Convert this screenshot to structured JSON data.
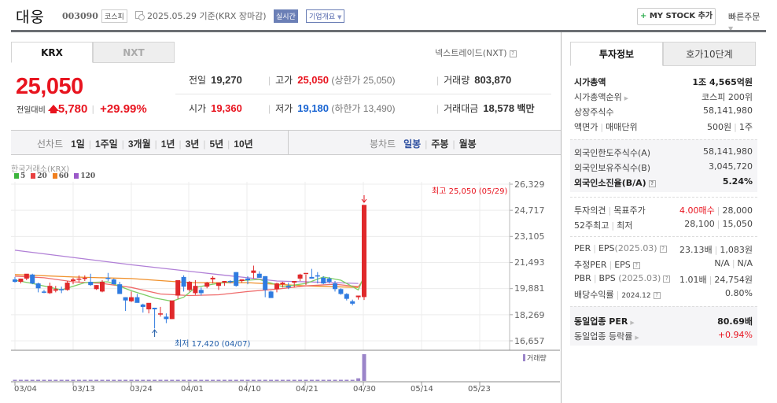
{
  "header": {
    "stock_name": "대웅",
    "stock_code": "003090",
    "market_badge": "코스피",
    "date_text": "2025.05.29 기준(KRX 장마감)",
    "realtime_badge": "실시간",
    "company_overview_label": "기업개요",
    "mystock_button": "MY STOCK 추가",
    "quick_order_label": "빠른주문"
  },
  "exchange_tabs": [
    {
      "label": "KRX",
      "active": true
    },
    {
      "label": "NXT",
      "active": false
    }
  ],
  "nxt_link": "넥스트레이드(NXT)",
  "quote": {
    "current_price": "25,050",
    "change_label": "전일대비",
    "change_amount": "5,780",
    "change_percent": "+29.99%",
    "direction": "up"
  },
  "stats": {
    "prev_close": {
      "label": "전일",
      "value": "19,270"
    },
    "high": {
      "label": "고가",
      "value": "25,050",
      "extra": "(상한가 25,050)"
    },
    "volume": {
      "label": "거래량",
      "value": "803,870"
    },
    "open": {
      "label": "시가",
      "value": "19,360"
    },
    "low": {
      "label": "저가",
      "value": "19,180",
      "extra": "(하한가 13,490)"
    },
    "trade_value": {
      "label": "거래대금",
      "value": "18,578",
      "unit": "백만"
    }
  },
  "period_bar": {
    "line_chart_label": "선차트",
    "line_periods": [
      "1일",
      "1주일",
      "3개월",
      "1년",
      "3년",
      "5년",
      "10년"
    ],
    "candle_chart_label": "봉차트",
    "candle_periods": [
      {
        "label": "일봉",
        "active": true
      },
      {
        "label": "주봉",
        "active": false
      },
      {
        "label": "월봉",
        "active": false
      }
    ]
  },
  "chart": {
    "source_label": "한국거래소(KRX)",
    "ma_legend": [
      {
        "label": "5",
        "color": "#3cb43c"
      },
      {
        "label": "20",
        "color": "#e84040"
      },
      {
        "label": "60",
        "color": "#f08020"
      },
      {
        "label": "120",
        "color": "#9b59c9"
      }
    ],
    "y_ticks": [
      "26,329",
      "24,717",
      "23,105",
      "21,493",
      "19,881",
      "18,269",
      "16,657"
    ],
    "x_ticks": [
      "03/04",
      "03/13",
      "03/24",
      "04/01",
      "04/10",
      "04/21",
      "04/30",
      "05/14",
      "05/23"
    ],
    "high_annotation": "최고 25,050 (05/29)",
    "low_annotation": "최저 17,420 (04/07)",
    "volume_legend": "거래량",
    "up_color": "#e0292b",
    "down_color": "#2f7be0"
  },
  "chart_data": {
    "type": "candlestick",
    "title": "대웅 일봉",
    "ylim": [
      16657,
      26329
    ],
    "candles": [
      [
        20450,
        20600,
        20250,
        20300
      ],
      [
        20300,
        20500,
        20200,
        20500
      ],
      [
        20500,
        20700,
        20400,
        20800
      ],
      [
        20750,
        20800,
        20150,
        20200
      ],
      [
        20200,
        20250,
        19650,
        19900
      ],
      [
        19700,
        19800,
        19600,
        19650
      ],
      [
        19600,
        20250,
        19550,
        20050
      ],
      [
        19750,
        20050,
        19650,
        19850
      ],
      [
        19850,
        20000,
        19600,
        19800
      ],
      [
        19800,
        20350,
        19750,
        20250
      ],
      [
        20350,
        20550,
        20150,
        20450
      ],
      [
        20450,
        20700,
        20250,
        20500
      ],
      [
        20500,
        20700,
        20350,
        20550
      ],
      [
        20300,
        20800,
        20050,
        20100
      ],
      [
        19850,
        20100,
        19800,
        20100
      ],
      [
        19700,
        20400,
        19650,
        20300
      ],
      [
        20550,
        20850,
        20350,
        20500
      ],
      [
        20450,
        20500,
        20150,
        20150
      ],
      [
        20150,
        20300,
        19650,
        19550
      ],
      [
        19350,
        19350,
        18500,
        19150
      ],
      [
        19100,
        19700,
        19050,
        19350
      ],
      [
        19350,
        19550,
        19150,
        19000
      ],
      [
        18900,
        18950,
        18400,
        18750
      ],
      [
        18600,
        18950,
        18350,
        19000
      ],
      [
        18700,
        18700,
        17420,
        18600
      ],
      [
        18350,
        18750,
        18150,
        18350
      ],
      [
        18150,
        18350,
        17750,
        18000
      ],
      [
        18000,
        19100,
        18000,
        19150
      ],
      [
        19450,
        20150,
        19250,
        20400
      ],
      [
        20600,
        20700,
        19700,
        20000
      ],
      [
        19800,
        20350,
        19700,
        20300
      ],
      [
        19600,
        20400,
        19500,
        20050
      ],
      [
        19800,
        19950,
        19450,
        19600
      ],
      [
        20000,
        20300,
        19900,
        20250
      ],
      [
        20450,
        20650,
        20200,
        20550
      ],
      [
        20050,
        20200,
        19800,
        20250
      ],
      [
        20250,
        20350,
        20050,
        20350
      ],
      [
        20350,
        20400,
        20200,
        20300
      ],
      [
        20900,
        20900,
        20000,
        20050
      ],
      [
        20350,
        20350,
        20250,
        20450
      ],
      [
        20500,
        20650,
        20150,
        20400
      ],
      [
        20850,
        21300,
        20500,
        21000
      ],
      [
        20800,
        20950,
        20550,
        20550
      ],
      [
        20650,
        20650,
        19350,
        19800
      ],
      [
        19700,
        19750,
        19500,
        19300
      ],
      [
        19850,
        20250,
        19650,
        20200
      ],
      [
        20150,
        20300,
        19950,
        20250
      ],
      [
        20050,
        20250,
        19850,
        19950
      ],
      [
        20250,
        20350,
        19950,
        20350
      ],
      [
        20500,
        20800,
        20350,
        20750
      ],
      [
        20800,
        20750,
        20100,
        20850
      ],
      [
        20600,
        21100,
        20500,
        20500
      ],
      [
        20700,
        20900,
        20200,
        20650
      ],
      [
        20550,
        20650,
        20150,
        20200
      ],
      [
        20500,
        20600,
        20200,
        20300
      ],
      [
        20200,
        20350,
        19700,
        19850
      ],
      [
        19850,
        19900,
        19500,
        19550
      ],
      [
        19550,
        19600,
        19150,
        19250
      ],
      [
        19100,
        19200,
        18850,
        18950
      ],
      [
        19350,
        19400,
        19200,
        19450
      ],
      [
        19360,
        25050,
        19180,
        25050
      ]
    ],
    "volume_relative": [
      2,
      2,
      1,
      2,
      2,
      2,
      1,
      2,
      1,
      1,
      1,
      1,
      2,
      1,
      1,
      1,
      1,
      2,
      1,
      1,
      1,
      1,
      3,
      1,
      2,
      1,
      2,
      1,
      1,
      2,
      1,
      1,
      0,
      1,
      1,
      1,
      1,
      1,
      1,
      1,
      2,
      1,
      3,
      2,
      3,
      2,
      1,
      2,
      2,
      2,
      1,
      1,
      1,
      1,
      1,
      1,
      2,
      2,
      3,
      10,
      100
    ],
    "ma_series": {
      "ma5": "green line ≈ 20400→19500 (04/07 low ~18400)→20300→19600→20600",
      "ma20": "red line ≈ 20600→19200→20200",
      "ma60": "orange line ≈ 20700→20100→19900",
      "ma120": "purple line ≈ 22250→20200"
    }
  },
  "investment_tabs": [
    {
      "label": "투자정보",
      "active": true
    },
    {
      "label": "호가10단계",
      "active": false
    }
  ],
  "investment_info": {
    "market_cap": {
      "label": "시가총액",
      "value": "1조 4,565억원"
    },
    "market_cap_rank": {
      "label": "시가총액순위",
      "value": "코스피 200위"
    },
    "listed_shares": {
      "label": "상장주식수",
      "value": "58,141,980"
    },
    "par_value": {
      "label": "액면가",
      "label2": "매매단위",
      "value": "500원",
      "value2": "1주"
    },
    "foreign_limit": {
      "label": "외국인한도주식수(A)",
      "value": "58,141,980"
    },
    "foreign_hold": {
      "label": "외국인보유주식수(B)",
      "value": "3,045,720"
    },
    "foreign_ratio": {
      "label": "외국인소진율(B/A)",
      "value": "5.24%"
    },
    "opinion": {
      "label": "투자의견",
      "label2": "목표주가",
      "value": "4.00매수",
      "value2": "28,000"
    },
    "week52": {
      "label": "52주최고",
      "label2": "최저",
      "value": "28,100",
      "value2": "15,050"
    },
    "per_eps": {
      "label": "PER",
      "label2": "EPS",
      "period": "(2025.03)",
      "value": "23.13배",
      "value2": "1,083원"
    },
    "est_per_eps": {
      "label": "추정PER",
      "label2": "EPS",
      "value": "N/A",
      "value2": "N/A"
    },
    "pbr_bps": {
      "label": "PBR",
      "label2": "BPS",
      "period": "(2025.03)",
      "value": "1.01배",
      "value2": "24,754원"
    },
    "dividend": {
      "label": "배당수익률",
      "period": "2024.12",
      "value": "0.80%"
    },
    "sector_per": {
      "label": "동일업종 PER",
      "value": "80.69배"
    },
    "sector_change": {
      "label": "동일업종 등락률",
      "value": "+0.94%"
    }
  }
}
